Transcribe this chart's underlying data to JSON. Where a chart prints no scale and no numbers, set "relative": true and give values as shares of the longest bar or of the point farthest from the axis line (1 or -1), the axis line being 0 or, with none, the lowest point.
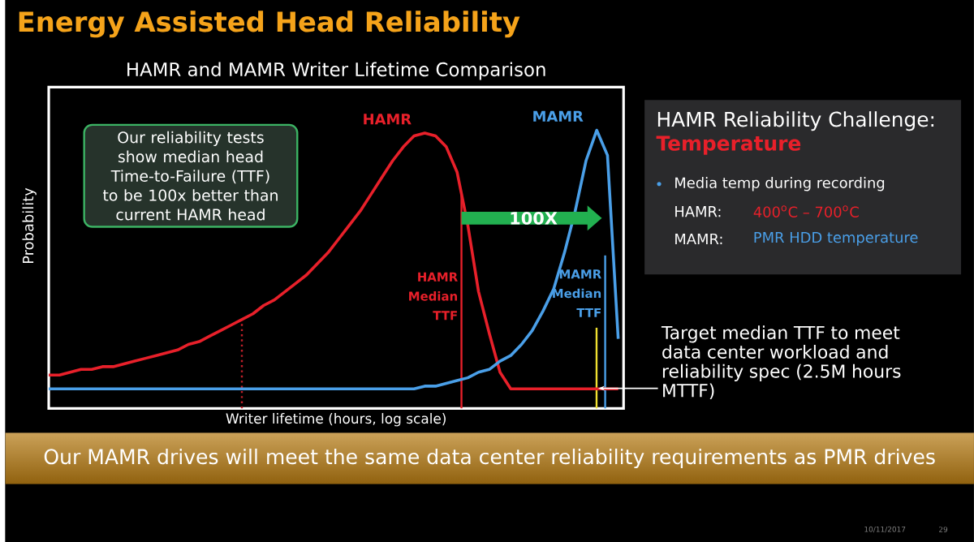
{
  "chart_data": {
    "type": "line",
    "relative": true,
    "title": "Energy Assisted Head Reliability",
    "subtitle": "HAMR and MAMR Writer Lifetime Comparison",
    "xlabel": "Writer lifetime (hours, log scale)",
    "ylabel": "Probability",
    "categories": [
      null,
      null,
      null,
      null,
      null,
      null,
      null,
      null,
      null,
      null,
      null,
      null,
      null,
      null,
      null,
      null,
      null,
      null,
      null,
      null,
      null,
      null,
      null,
      null,
      null,
      null,
      null,
      null,
      null,
      null,
      null,
      null,
      null,
      null,
      null,
      null,
      null,
      null,
      null,
      null,
      null,
      null,
      null,
      null,
      null,
      null,
      null,
      null,
      null,
      null,
      null,
      null,
      null,
      null
    ],
    "series": [
      {
        "name": "HAMR",
        "color": "#e8202a",
        "values": [
          0.12,
          0.12,
          0.13,
          0.14,
          0.14,
          0.15,
          0.15,
          0.16,
          0.17,
          0.18,
          0.19,
          0.2,
          0.21,
          0.23,
          0.24,
          0.26,
          0.28,
          0.3,
          0.32,
          0.34,
          0.37,
          0.39,
          0.42,
          0.45,
          0.48,
          0.52,
          0.56,
          0.61,
          0.66,
          0.71,
          0.77,
          0.83,
          0.89,
          0.94,
          0.98,
          0.99,
          0.98,
          0.94,
          0.85,
          0.66,
          0.42,
          0.27,
          0.13,
          0.07,
          0.07,
          0.07,
          0.07,
          0.07,
          0.07,
          0.07,
          0.07,
          0.07,
          0.07,
          0.07
        ]
      },
      {
        "name": "MAMR",
        "color": "#4a9fe8",
        "values": [
          0.07,
          0.07,
          0.07,
          0.07,
          0.07,
          0.07,
          0.07,
          0.07,
          0.07,
          0.07,
          0.07,
          0.07,
          0.07,
          0.07,
          0.07,
          0.07,
          0.07,
          0.07,
          0.07,
          0.07,
          0.07,
          0.07,
          0.07,
          0.07,
          0.07,
          0.07,
          0.07,
          0.07,
          0.07,
          0.07,
          0.07,
          0.07,
          0.07,
          0.07,
          0.07,
          0.08,
          0.08,
          0.09,
          0.1,
          0.11,
          0.13,
          0.14,
          0.17,
          0.19,
          0.23,
          0.28,
          0.35,
          0.43,
          0.56,
          0.71,
          0.89,
          1.0,
          0.91,
          0.25
        ]
      }
    ],
    "annotations": [
      "Our reliability tests show median head Time-to-Failure (TTF) to be 100x better than current HAMR head",
      "100X",
      "HAMR Reliability Challenge:",
      "Temperature",
      "Media temp during recording",
      "HAMR:",
      "400$^{o}$C – 700$^{o}$C",
      "MAMR:",
      "PMR HDD temperature",
      "Our MAMR drives will meet the same data center reliability requirements as PMR drives",
      "10/11/2017",
      "29",
      "HAMR Median TTF",
      "MAMR Median TTF",
      "Target median TTF to meet data center workload and reliability spec (2.5M hours MTTF)"
    ],
    "tick_labels": false
  }
}
